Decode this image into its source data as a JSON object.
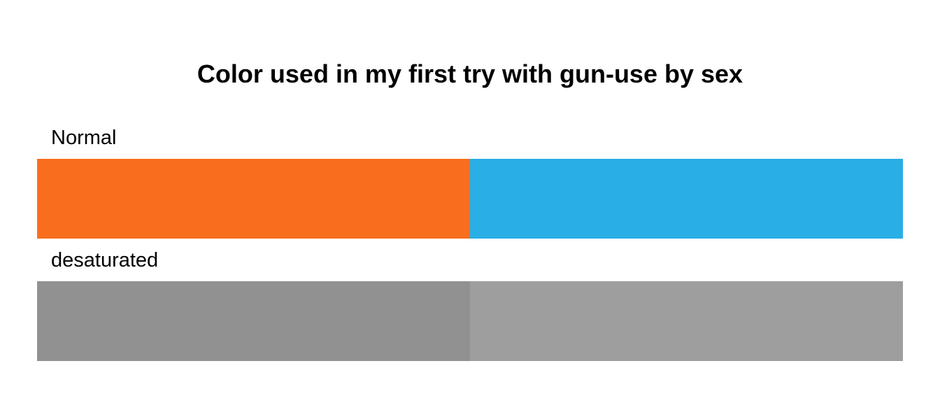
{
  "chart_data": {
    "type": "table",
    "title": "Color used in my first try with gun-use by sex",
    "rows": [
      {
        "label": "Normal",
        "colors": [
          "#F96E1E",
          "#29AEE6"
        ]
      },
      {
        "label": "desaturated",
        "colors": [
          "#919191",
          "#9E9E9E"
        ]
      }
    ]
  }
}
